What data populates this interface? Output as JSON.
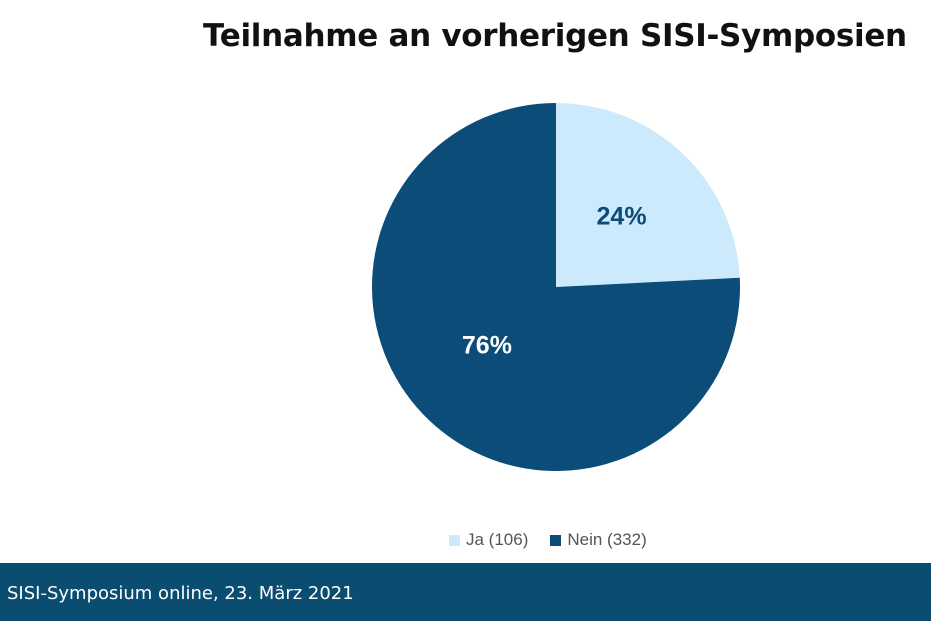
{
  "slide": {
    "title": "Teilnahme an vorherigen SISI-Symposien",
    "footer": "SISI-Symposium online, 23. März 2021"
  },
  "colors": {
    "ja": "#cdeafc",
    "nein": "#0b4c79",
    "label_on_light": "#0b4c79",
    "label_on_dark": "#ffffff",
    "footer_bg": "#0b4c71"
  },
  "chart_data": {
    "type": "pie",
    "title": "Teilnahme an vorherigen SISI-Symposien",
    "categories": [
      "Ja",
      "Nein"
    ],
    "values": [
      106,
      332
    ],
    "percent_labels": [
      "24%",
      "76%"
    ],
    "legend_labels": [
      "Ja (106)",
      "Nein (332)"
    ],
    "legend_position": "bottom"
  }
}
